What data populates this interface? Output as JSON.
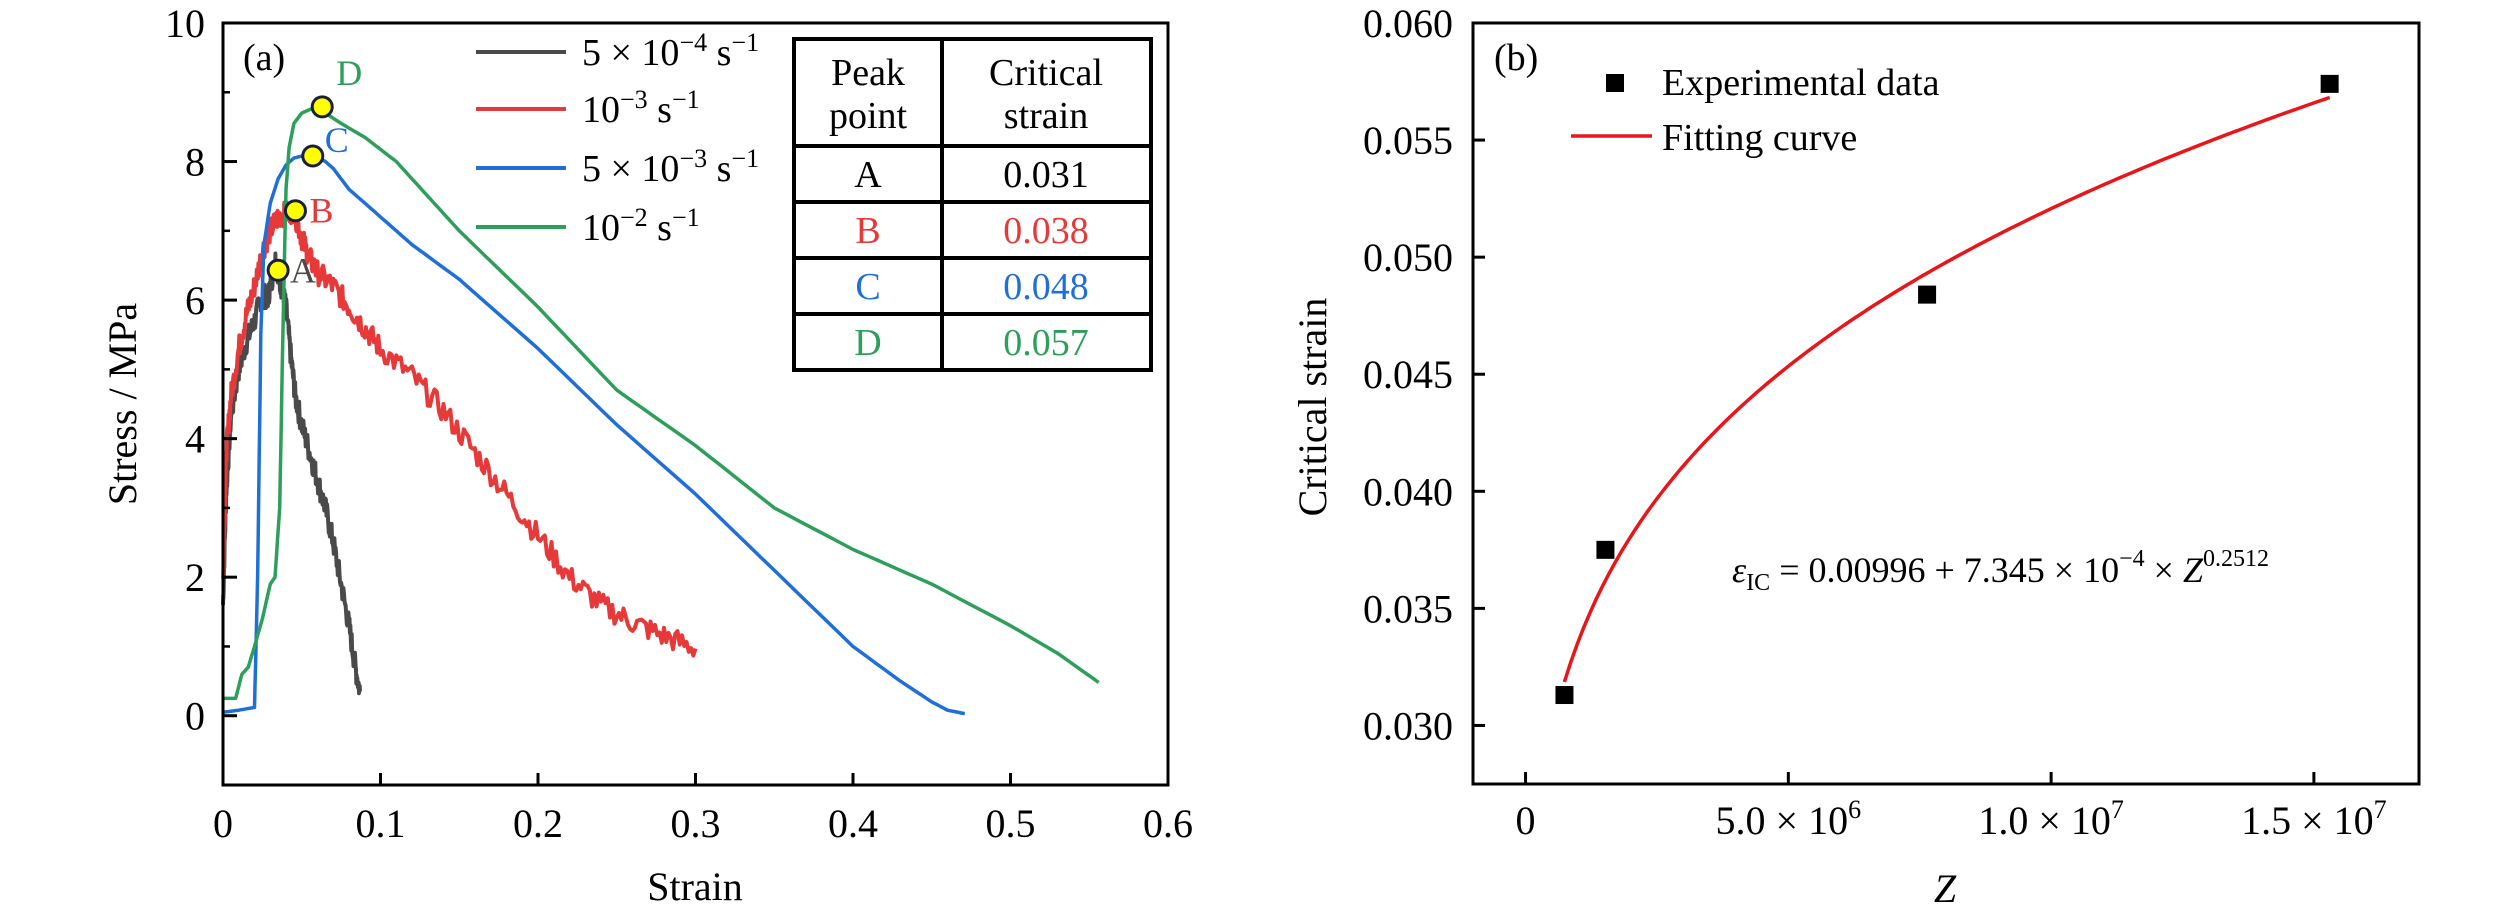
{
  "chart_data": [
    {
      "type": "line",
      "panel_label": "(a)",
      "title": "",
      "xlabel": "Strain",
      "ylabel": "Stress / MPa",
      "xlim": [
        0,
        0.6
      ],
      "ylim": [
        -1,
        10
      ],
      "x_ticks": [
        0,
        0.1,
        0.2,
        0.3,
        0.4,
        0.5,
        0.6
      ],
      "x_tick_labels": [
        "0",
        "0.1",
        "0.2",
        "0.3",
        "0.4",
        "0.5",
        "0.6"
      ],
      "y_ticks": [
        0,
        2,
        4,
        6,
        8,
        10
      ],
      "y_tick_labels": [
        "0",
        "2",
        "4",
        "6",
        "8",
        "10"
      ],
      "y_minor_ticks": [
        -1,
        1,
        3,
        5,
        7,
        9
      ],
      "grid": false,
      "legend_position": "top-center",
      "series": [
        {
          "name": "5 × 10⁻⁴ s⁻¹",
          "legend": {
            "base": "5 × 10",
            "exp": "−4",
            "unit": " s",
            "unit_exp": "−1"
          },
          "color": "#4a4a4a",
          "noisy": true,
          "x": [
            0.0,
            0.002,
            0.005,
            0.01,
            0.015,
            0.02,
            0.025,
            0.028,
            0.031,
            0.033,
            0.035,
            0.037,
            0.04,
            0.043,
            0.046,
            0.05,
            0.055,
            0.06,
            0.065,
            0.07,
            0.075,
            0.08,
            0.084,
            0.087
          ],
          "y": [
            1.6,
            3.2,
            4.3,
            5.0,
            5.4,
            5.7,
            6.1,
            6.0,
            6.3,
            6.6,
            6.4,
            6.2,
            5.9,
            5.2,
            4.6,
            4.2,
            3.8,
            3.4,
            3.0,
            2.5,
            1.9,
            1.3,
            0.7,
            0.35
          ]
        },
        {
          "name": "10⁻³ s⁻¹",
          "legend": {
            "base": "10",
            "exp": "−3",
            "unit": " s",
            "unit_exp": "−1"
          },
          "color": "#e63a3a",
          "noisy": true,
          "x": [
            0.0,
            0.002,
            0.005,
            0.01,
            0.015,
            0.02,
            0.025,
            0.03,
            0.035,
            0.04,
            0.045,
            0.05,
            0.055,
            0.06,
            0.07,
            0.08,
            0.09,
            0.1,
            0.12,
            0.14,
            0.16,
            0.18,
            0.2,
            0.22,
            0.24,
            0.26,
            0.28,
            0.3
          ],
          "y": [
            2.0,
            3.8,
            4.6,
            5.3,
            5.8,
            6.2,
            6.7,
            7.0,
            7.2,
            7.25,
            7.3,
            6.9,
            6.6,
            6.4,
            6.2,
            5.9,
            5.6,
            5.3,
            4.9,
            4.4,
            3.8,
            3.2,
            2.6,
            2.0,
            1.6,
            1.35,
            1.15,
            0.97
          ]
        },
        {
          "name": "5 × 10⁻³ s⁻¹",
          "legend": {
            "base": "5 × 10",
            "exp": "−3",
            "unit": " s",
            "unit_exp": "−1"
          },
          "color": "#1f6fd6",
          "noisy": false,
          "x": [
            0.0,
            0.01,
            0.02,
            0.022,
            0.024,
            0.026,
            0.03,
            0.035,
            0.04,
            0.045,
            0.05,
            0.055,
            0.06,
            0.065,
            0.07,
            0.08,
            0.1,
            0.12,
            0.15,
            0.2,
            0.25,
            0.3,
            0.35,
            0.4,
            0.43,
            0.45,
            0.46,
            0.471
          ],
          "y": [
            0.05,
            0.08,
            0.12,
            2.0,
            5.5,
            6.8,
            7.4,
            7.75,
            7.95,
            8.05,
            8.08,
            8.07,
            8.06,
            8.0,
            7.9,
            7.6,
            7.2,
            6.8,
            6.3,
            5.3,
            4.2,
            3.2,
            2.1,
            1.0,
            0.5,
            0.2,
            0.08,
            0.03
          ]
        },
        {
          "name": "10⁻² s⁻¹",
          "legend": {
            "base": "10",
            "exp": "−2",
            "unit": " s",
            "unit_exp": "−1"
          },
          "color": "#2e9e5b",
          "noisy": false,
          "x": [
            0.0,
            0.008,
            0.012,
            0.016,
            0.02,
            0.025,
            0.03,
            0.033,
            0.036,
            0.038,
            0.04,
            0.042,
            0.045,
            0.05,
            0.055,
            0.06,
            0.065,
            0.075,
            0.09,
            0.11,
            0.13,
            0.15,
            0.2,
            0.25,
            0.3,
            0.35,
            0.4,
            0.45,
            0.5,
            0.53,
            0.556
          ],
          "y": [
            0.25,
            0.25,
            0.6,
            0.7,
            1.0,
            1.4,
            1.9,
            2.0,
            3.0,
            5.5,
            7.6,
            8.2,
            8.55,
            8.7,
            8.75,
            8.79,
            8.7,
            8.55,
            8.35,
            8.0,
            7.5,
            7.0,
            5.9,
            4.7,
            3.9,
            3.0,
            2.4,
            1.9,
            1.3,
            0.9,
            0.48
          ]
        }
      ],
      "peak_points": [
        {
          "label": "A",
          "x": 0.035,
          "y": 6.43,
          "color": "#4a4a4a"
        },
        {
          "label": "B",
          "x": 0.046,
          "y": 7.29,
          "color": "#e63a3a"
        },
        {
          "label": "C",
          "x": 0.057,
          "y": 8.08,
          "color": "#1f6fd6"
        },
        {
          "label": "D",
          "x": 0.063,
          "y": 8.79,
          "color": "#2e9e5b"
        }
      ],
      "marker_fill": "#ffff00",
      "marker_stroke": "#1a1f3c",
      "table": {
        "headers": [
          [
            "Peak",
            "point"
          ],
          [
            "Critical",
            "strain"
          ]
        ],
        "rows": [
          {
            "point": "A",
            "strain": "0.031",
            "color": "#000000"
          },
          {
            "point": "B",
            "strain": "0.038",
            "color": "#e63a3a"
          },
          {
            "point": "C",
            "strain": "0.048",
            "color": "#1f6fd6"
          },
          {
            "point": "D",
            "strain": "0.057",
            "color": "#2e9e5b"
          }
        ]
      }
    },
    {
      "type": "scatter",
      "panel_label": "(b)",
      "title": "",
      "xlabel": "Z",
      "ylabel": "Critical strain",
      "xlim": [
        -1000000.0,
        17000000.0
      ],
      "ylim": [
        0.0275,
        0.06
      ],
      "x_ticks": [
        0,
        5000000.0,
        10000000.0,
        15000000.0
      ],
      "x_tick_labels": [
        {
          "mant": "0",
          "exp": ""
        },
        {
          "mant": "5.0 × 10",
          "exp": "6"
        },
        {
          "mant": "1.0 × 10",
          "exp": "7"
        },
        {
          "mant": "1.5 × 10",
          "exp": "7"
        }
      ],
      "y_ticks": [
        0.03,
        0.035,
        0.04,
        0.045,
        0.05,
        0.055,
        0.06
      ],
      "y_tick_labels": [
        "0.030",
        "0.035",
        "0.040",
        "0.045",
        "0.050",
        "0.055",
        "0.060"
      ],
      "grid": false,
      "legend_position": "top-left",
      "series": [
        {
          "name": "Experimental data",
          "kind": "scatter",
          "marker": "square",
          "color": "#000000",
          "x": [
            740000.0,
            1520000.0,
            7640000.0,
            15300000.0
          ],
          "y": [
            0.0313,
            0.0375,
            0.0484,
            0.0574
          ]
        },
        {
          "name": "Fitting curve",
          "kind": "line",
          "color": "#e8151b",
          "equation": {
            "a": 0.00996,
            "b": 0.0007345,
            "n": 0.2512
          },
          "x_range": [
            740000.0,
            15300000.0
          ]
        }
      ],
      "annotation": {
        "symbol": "ε",
        "subscript": "IC",
        "body": " = 0.00996 + 7.345 × 10",
        "exp1": "−4",
        "tail": " × ",
        "var": "Z",
        "exp2": "0.2512"
      }
    }
  ]
}
